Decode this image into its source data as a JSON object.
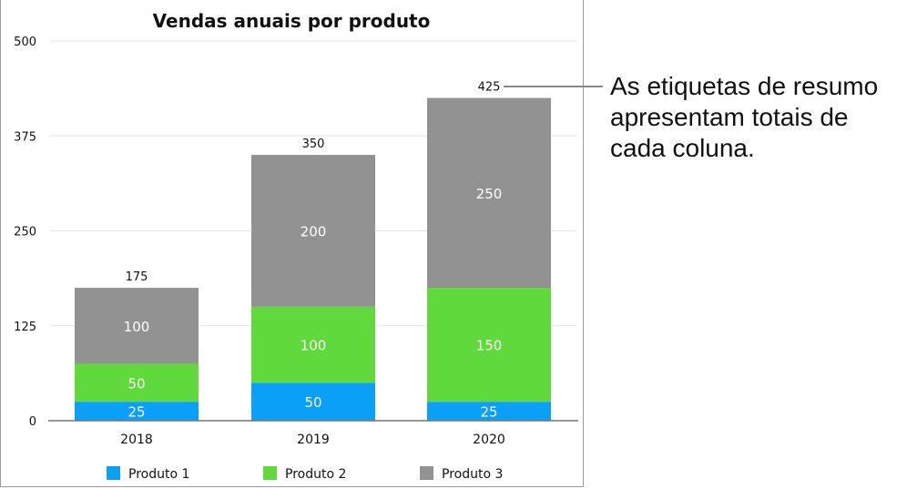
{
  "chart_data": {
    "type": "bar",
    "stacked": true,
    "title": "Vendas anuais por produto",
    "categories": [
      "2018",
      "2019",
      "2020"
    ],
    "series": [
      {
        "name": "Produto 1",
        "values": [
          25,
          50,
          25
        ],
        "color": "#0aa0f8"
      },
      {
        "name": "Produto 2",
        "values": [
          50,
          100,
          150
        ],
        "color": "#5fd93b"
      },
      {
        "name": "Produto 3",
        "values": [
          100,
          200,
          250
        ],
        "color": "#929292"
      }
    ],
    "totals": [
      175,
      350,
      425
    ],
    "ylim": [
      0,
      500
    ],
    "yticks": [
      0,
      125,
      250,
      375,
      500
    ],
    "grid": true,
    "legend": "bottom"
  },
  "annotation": {
    "text": "As etiquetas de resumo apresentam totais de cada coluna."
  }
}
